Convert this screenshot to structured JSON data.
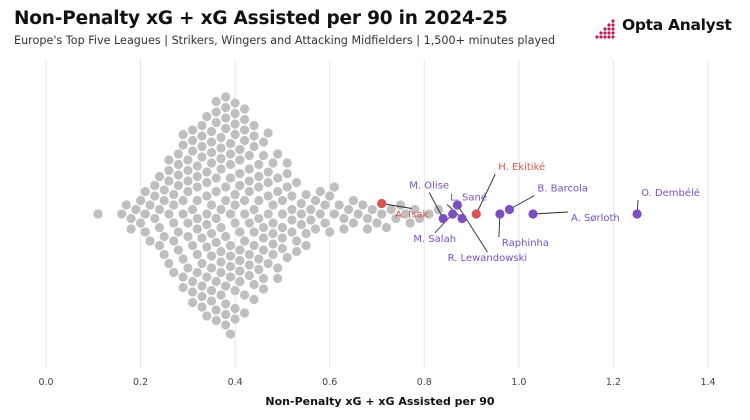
{
  "header": {
    "title": "Non-Penalty xG + xG Assisted per 90 in 2024-25",
    "subtitle": "Europe's Top Five Leagues | Strikers, Wingers and Attacking Midfielders | 1,500+ minutes played"
  },
  "brand": {
    "name": "Opta Analyst",
    "accent": "#c2185b"
  },
  "colors": {
    "others": "#bfbfbf",
    "highlight_purple": "#7b4fc2",
    "highlight_red": "#d9534f"
  },
  "chart_data": {
    "type": "scatter",
    "title": "Non-Penalty xG + xG Assisted per 90 in 2024-25",
    "xlabel": "Non-Penalty xG + xG Assisted per 90",
    "ylabel": "",
    "xlim": [
      0.0,
      1.4
    ],
    "xticks": [
      "0.0",
      "0.2",
      "0.4",
      "0.6",
      "0.8",
      "1.0",
      "1.2",
      "1.4"
    ],
    "grid": true,
    "highlighted": [
      {
        "name": "O. Dembélé",
        "value": 1.25,
        "color": "purple"
      },
      {
        "name": "A. Sørloth",
        "value": 1.03,
        "color": "purple"
      },
      {
        "name": "B. Barcola",
        "value": 0.98,
        "color": "purple"
      },
      {
        "name": "Raphinha",
        "value": 0.96,
        "color": "purple"
      },
      {
        "name": "H. Ekitiké",
        "value": 0.91,
        "color": "red"
      },
      {
        "name": "L. Sané",
        "value": 0.88,
        "color": "purple"
      },
      {
        "name": "R. Lewandowski",
        "value": 0.87,
        "color": "purple"
      },
      {
        "name": "M. Salah",
        "value": 0.86,
        "color": "purple"
      },
      {
        "name": "M. Olise",
        "value": 0.84,
        "color": "purple"
      },
      {
        "name": "A. Isak",
        "value": 0.71,
        "color": "red"
      }
    ],
    "others_values": [
      0.11,
      0.16,
      0.17,
      0.18,
      0.18,
      0.19,
      0.2,
      0.2,
      0.21,
      0.21,
      0.21,
      0.22,
      0.22,
      0.23,
      0.23,
      0.23,
      0.24,
      0.24,
      0.24,
      0.24,
      0.25,
      0.25,
      0.25,
      0.25,
      0.26,
      0.26,
      0.26,
      0.26,
      0.26,
      0.27,
      0.27,
      0.27,
      0.27,
      0.27,
      0.28,
      0.28,
      0.28,
      0.28,
      0.28,
      0.28,
      0.29,
      0.29,
      0.29,
      0.29,
      0.29,
      0.29,
      0.29,
      0.3,
      0.3,
      0.3,
      0.3,
      0.3,
      0.3,
      0.3,
      0.31,
      0.31,
      0.31,
      0.31,
      0.31,
      0.31,
      0.31,
      0.31,
      0.32,
      0.32,
      0.32,
      0.32,
      0.32,
      0.32,
      0.32,
      0.32,
      0.33,
      0.33,
      0.33,
      0.33,
      0.33,
      0.33,
      0.33,
      0.33,
      0.33,
      0.34,
      0.34,
      0.34,
      0.34,
      0.34,
      0.34,
      0.34,
      0.34,
      0.34,
      0.35,
      0.35,
      0.35,
      0.35,
      0.35,
      0.35,
      0.35,
      0.35,
      0.35,
      0.35,
      0.36,
      0.36,
      0.36,
      0.36,
      0.36,
      0.36,
      0.36,
      0.36,
      0.36,
      0.36,
      0.37,
      0.37,
      0.37,
      0.37,
      0.37,
      0.37,
      0.37,
      0.37,
      0.37,
      0.37,
      0.38,
      0.38,
      0.38,
      0.38,
      0.38,
      0.38,
      0.38,
      0.38,
      0.38,
      0.38,
      0.38,
      0.39,
      0.39,
      0.39,
      0.39,
      0.39,
      0.39,
      0.39,
      0.39,
      0.39,
      0.39,
      0.4,
      0.4,
      0.4,
      0.4,
      0.4,
      0.4,
      0.4,
      0.4,
      0.4,
      0.4,
      0.41,
      0.41,
      0.41,
      0.41,
      0.41,
      0.41,
      0.41,
      0.41,
      0.41,
      0.42,
      0.42,
      0.42,
      0.42,
      0.42,
      0.42,
      0.42,
      0.42,
      0.42,
      0.43,
      0.43,
      0.43,
      0.43,
      0.43,
      0.43,
      0.43,
      0.43,
      0.44,
      0.44,
      0.44,
      0.44,
      0.44,
      0.44,
      0.44,
      0.44,
      0.45,
      0.45,
      0.45,
      0.45,
      0.45,
      0.45,
      0.45,
      0.46,
      0.46,
      0.46,
      0.46,
      0.46,
      0.46,
      0.46,
      0.47,
      0.47,
      0.47,
      0.47,
      0.47,
      0.47,
      0.48,
      0.48,
      0.48,
      0.48,
      0.48,
      0.48,
      0.49,
      0.49,
      0.49,
      0.49,
      0.49,
      0.5,
      0.5,
      0.5,
      0.5,
      0.5,
      0.51,
      0.51,
      0.51,
      0.51,
      0.52,
      0.52,
      0.52,
      0.52,
      0.53,
      0.53,
      0.53,
      0.54,
      0.54,
      0.54,
      0.55,
      0.55,
      0.55,
      0.56,
      0.56,
      0.57,
      0.57,
      0.58,
      0.58,
      0.59,
      0.59,
      0.6,
      0.6,
      0.61,
      0.61,
      0.62,
      0.63,
      0.63,
      0.64,
      0.65,
      0.65,
      0.66,
      0.67,
      0.68,
      0.68,
      0.69,
      0.7,
      0.71,
      0.72,
      0.73,
      0.74,
      0.75,
      0.76,
      0.77,
      0.78,
      0.79,
      0.81,
      0.83
    ]
  }
}
